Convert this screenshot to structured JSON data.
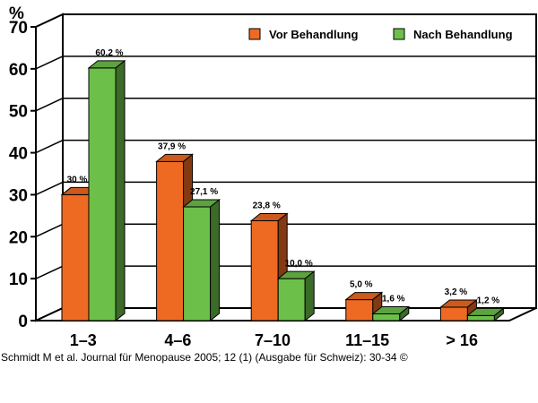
{
  "chart_data": {
    "type": "bar",
    "ylabel": "%",
    "ylim": [
      0,
      70
    ],
    "yticks": [
      0,
      10,
      20,
      30,
      40,
      50,
      60,
      70
    ],
    "grid": true,
    "legend_position": "top-right",
    "categories": [
      "1–3",
      "4–6",
      "7–10",
      "11–15",
      "> 16"
    ],
    "series": [
      {
        "name": "Vor Behandlung",
        "color": "#ee6a22",
        "values": [
          30,
          37.9,
          23.8,
          5.0,
          3.2
        ],
        "labels": [
          "30 %",
          "37,9 %",
          "23,8 %",
          "5,0 %",
          "3,2 %"
        ]
      },
      {
        "name": "Nach Behandlung",
        "color": "#6cc04a",
        "values": [
          60.2,
          27.1,
          10.0,
          1.6,
          1.2
        ],
        "labels": [
          "60,2 %",
          "27,1 %",
          "10,0 %",
          "1,6 %",
          "1,2 %"
        ]
      }
    ]
  },
  "caption": "Schmidt M et al. Journal für Menopause 2005; 12 (1) (Ausgabe für Schweiz): 30-34 ©"
}
